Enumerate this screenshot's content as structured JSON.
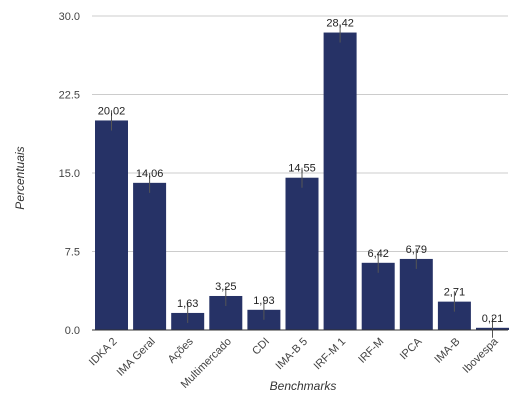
{
  "chart_data": {
    "type": "bar",
    "title": "",
    "xlabel": "Benchmarks",
    "ylabel": "Percentuais",
    "ylim": [
      0,
      30
    ],
    "yticks": [
      "0.0",
      "7.5",
      "15.0",
      "22.5",
      "30.0"
    ],
    "grid": true,
    "legend": "none",
    "categories": [
      "IDKA 2",
      "IMA Geral",
      "Ações",
      "Multimercado",
      "CDI",
      "IMA-B 5",
      "IRF-M 1",
      "IRF-M",
      "IPCA",
      "IMA-B",
      "Ibovespa"
    ],
    "values": [
      20.02,
      14.06,
      1.63,
      3.25,
      1.93,
      14.55,
      28.42,
      6.42,
      6.79,
      2.71,
      0.21
    ],
    "value_labels": [
      "20,02",
      "14,06",
      "1,63",
      "3,25",
      "1,93",
      "14,55",
      "28,42",
      "6,42",
      "6,79",
      "2,71",
      "0,21"
    ],
    "error_bar_high": [
      21.0,
      15.0,
      2.6,
      4.2,
      2.9,
      15.5,
      29.2,
      7.4,
      7.8,
      3.7,
      1.2
    ],
    "colors": {
      "bar": "#263266",
      "error_bar": "#555555",
      "grid": "#cccccc",
      "axis": "#333333",
      "text": "#444444"
    }
  }
}
